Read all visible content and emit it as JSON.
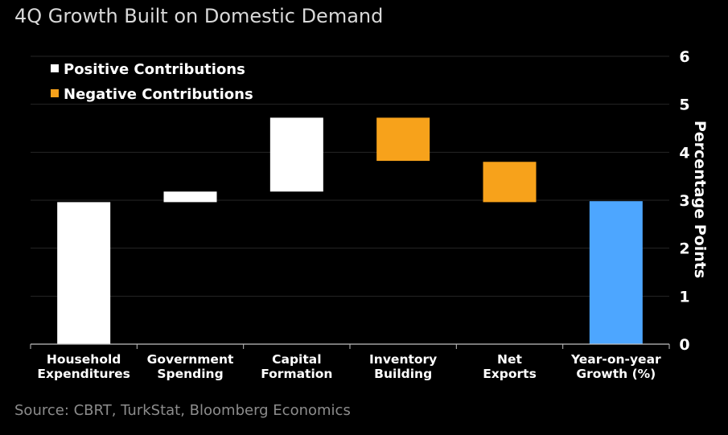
{
  "chart_data": {
    "type": "bar",
    "subtype": "waterfall",
    "title": "4Q Growth Built on Domestic Demand",
    "source": "Source: CBRT, TurkStat, Bloomberg Economics",
    "ylabel": "Percentage Points",
    "xlabel": "",
    "ylim": [
      0,
      6
    ],
    "yticks": [
      0,
      1,
      2,
      3,
      4,
      5,
      6
    ],
    "grid": true,
    "legend_position": "top-left",
    "legend": [
      {
        "label": "Positive Contributions",
        "color": "#ffffff"
      },
      {
        "label": "Negative Contributions",
        "color": "#f7a21b"
      }
    ],
    "categories": [
      [
        "Household",
        "Expenditures"
      ],
      [
        "Government",
        "Spending"
      ],
      [
        "Capital",
        "Formation"
      ],
      [
        "Inventory",
        "Building"
      ],
      [
        "Net",
        "Exports"
      ],
      [
        "Year-on-year",
        "Growth (%)"
      ]
    ],
    "bars": [
      {
        "start": 0,
        "end": 2.96,
        "kind": "positive",
        "color": "#ffffff"
      },
      {
        "start": 2.96,
        "end": 3.18,
        "kind": "positive",
        "color": "#ffffff"
      },
      {
        "start": 3.18,
        "end": 4.72,
        "kind": "positive",
        "color": "#ffffff"
      },
      {
        "start": 4.72,
        "end": 3.82,
        "kind": "negative",
        "color": "#f7a21b"
      },
      {
        "start": 3.8,
        "end": 2.96,
        "kind": "negative",
        "color": "#f7a21b"
      },
      {
        "start": 0,
        "end": 2.98,
        "kind": "total",
        "color": "#4da6ff"
      }
    ]
  }
}
